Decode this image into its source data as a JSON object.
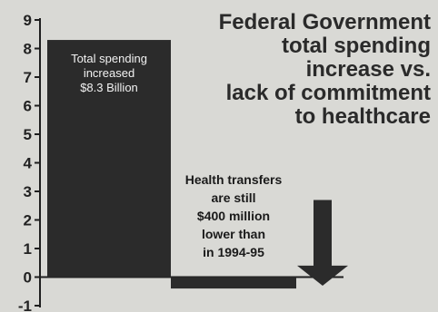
{
  "title_lines": [
    "Federal Government",
    "total spending",
    "increase vs.",
    "lack of commitment",
    "to healthcare"
  ],
  "colors": {
    "bar": "#2b2b2b",
    "axis": "#1f1f1f",
    "background": "#d9d9d5"
  },
  "chart_data": {
    "type": "bar",
    "categories": [
      "Total spending",
      "Health transfers"
    ],
    "values": [
      8.3,
      -0.4
    ],
    "ylim": [
      -1,
      9
    ],
    "yticks": [
      "-1",
      "0",
      "1",
      "2",
      "3",
      "4",
      "5",
      "6",
      "7",
      "8",
      "9"
    ],
    "annotations": {
      "bar1_lines": [
        "Total spending",
        "increased",
        "$8.3 Billion"
      ],
      "bar2_lines": [
        "Health transfers",
        "are still",
        "$400 million",
        "lower than",
        "in 1994-95"
      ]
    },
    "arrow": "down-arrow"
  }
}
